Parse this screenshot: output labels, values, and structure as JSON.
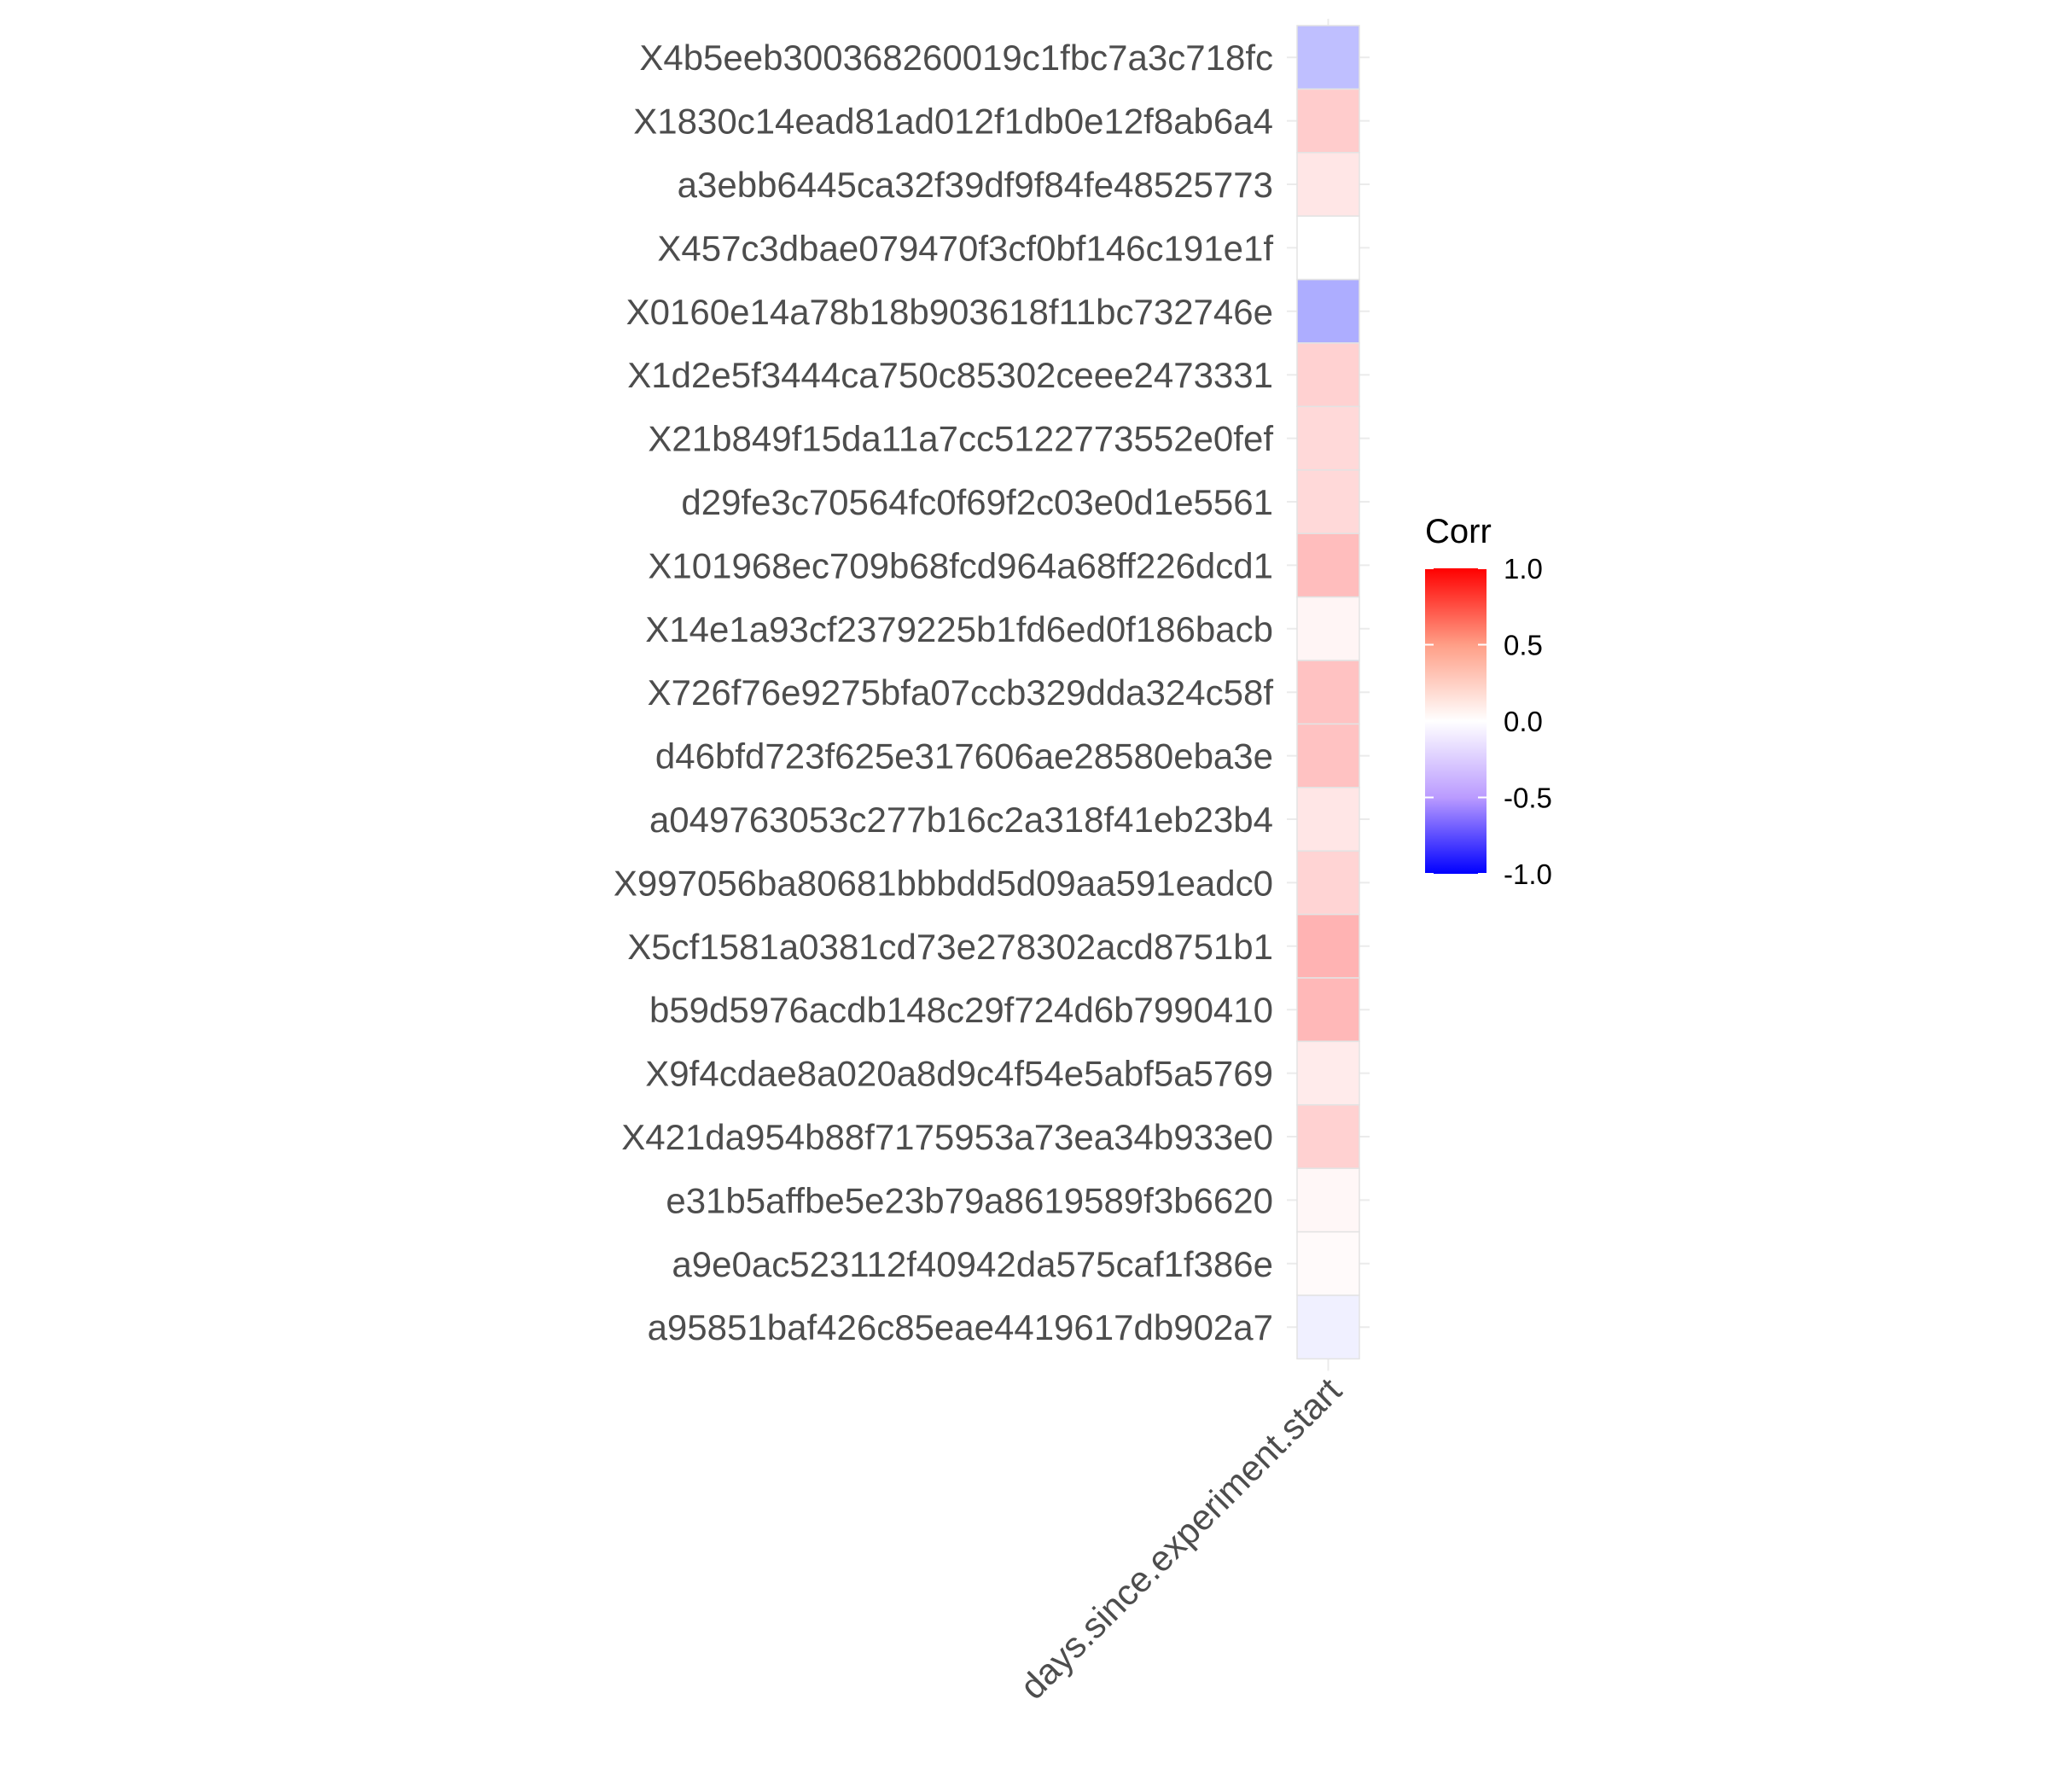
{
  "chart_data": {
    "type": "heatmap",
    "title": "",
    "xlabel": "",
    "ylabel": "",
    "x_categories": [
      "days.since.experiment.start"
    ],
    "y_categories": [
      "X4b5eeb300368260019c1fbc7a3c718fc",
      "X1830c14ead81ad012f1db0e12f8ab6a4",
      "a3ebb6445ca32f39df9f84fe48525773",
      "X457c3dbae079470f3cf0bf146c191e1f",
      "X0160e14a78b18b903618f11bc732746e",
      "X1d2e5f3444ca750c85302ceee2473331",
      "X21b849f15da11a7cc5122773552e0fef",
      "d29fe3c70564fc0f69f2c03e0d1e5561",
      "X101968ec709b68fcd964a68ff226dcd1",
      "X14e1a93cf2379225b1fd6ed0f186bacb",
      "X726f76e9275bfa07ccb329dda324c58f",
      "d46bfd723f625e317606ae28580eba3e",
      "a049763053c277b16c2a318f41eb23b4",
      "X997056ba80681bbbdd5d09aa591eadc0",
      "X5cf1581a0381cd73e278302acd8751b1",
      "b59d5976acdb148c29f724d6b7990410",
      "X9f4cdae8a020a8d9c4f54e5abf5a5769",
      "X421da954b88f7175953a73ea34b933e0",
      "e31b5affbe5e23b79a8619589f3b6620",
      "a9e0ac523112f40942da575caf1f386e",
      "a95851baf426c85eae4419617db902a7"
    ],
    "values": [
      -0.25,
      0.2,
      0.1,
      0.0,
      -0.32,
      0.18,
      0.15,
      0.15,
      0.26,
      0.04,
      0.24,
      0.24,
      0.1,
      0.17,
      0.3,
      0.28,
      0.08,
      0.18,
      0.03,
      0.02,
      -0.06
    ],
    "legend": {
      "title": "Corr",
      "ticks": [
        "1.0",
        "0.5",
        "0.0",
        "-0.5",
        "-1.0"
      ],
      "tick_values": [
        1.0,
        0.5,
        0.0,
        -0.5,
        -1.0
      ],
      "range": [
        -1,
        1
      ],
      "position": "right"
    },
    "colors": {
      "low": "#0000FF",
      "mid": "#FFFFFF",
      "high": "#FF0000",
      "tile_border": "#e3e3e3",
      "grid": "#ebebeb"
    }
  }
}
